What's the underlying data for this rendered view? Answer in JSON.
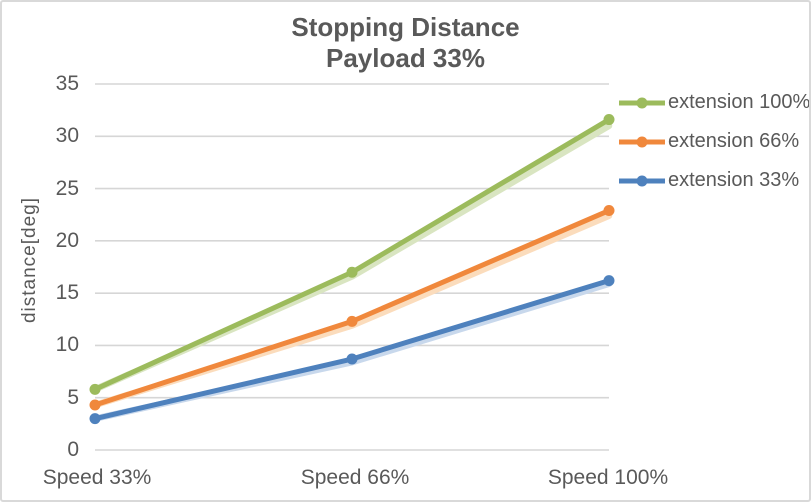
{
  "chart_data": {
    "type": "line",
    "title": "Stopping Distance",
    "subtitle": "Payload 33%",
    "ylabel": "distance[deg]",
    "xlabel": "",
    "categories": [
      "Speed 33%",
      "Speed 66%",
      "Speed 100%"
    ],
    "series": [
      {
        "name": "extension 100%",
        "color": "#9CBB5C",
        "shadow_color": "#D9E5C1",
        "values": [
          5.8,
          17.0,
          31.6
        ],
        "shadow_values": [
          5.8,
          16.6,
          31.0
        ]
      },
      {
        "name": "extension 66%",
        "color": "#F0883C",
        "shadow_color": "#FBDCBC",
        "values": [
          4.3,
          12.3,
          22.9
        ],
        "shadow_values": [
          4.3,
          11.9,
          22.4
        ]
      },
      {
        "name": "extension 33%",
        "color": "#4E81BD",
        "shadow_color": "#C8D8EC",
        "values": [
          3.0,
          8.7,
          16.2
        ],
        "shadow_values": [
          3.0,
          8.4,
          15.9
        ]
      }
    ],
    "ylim": [
      0,
      35
    ],
    "ytick_step": 5,
    "grid": true,
    "legend_position": "right",
    "colors": {
      "axis_text": "#595959",
      "title_text": "#595959",
      "gridline": "#D6D6D6",
      "chart_border": "#D9D9D9",
      "background": "#FFFFFF"
    }
  }
}
